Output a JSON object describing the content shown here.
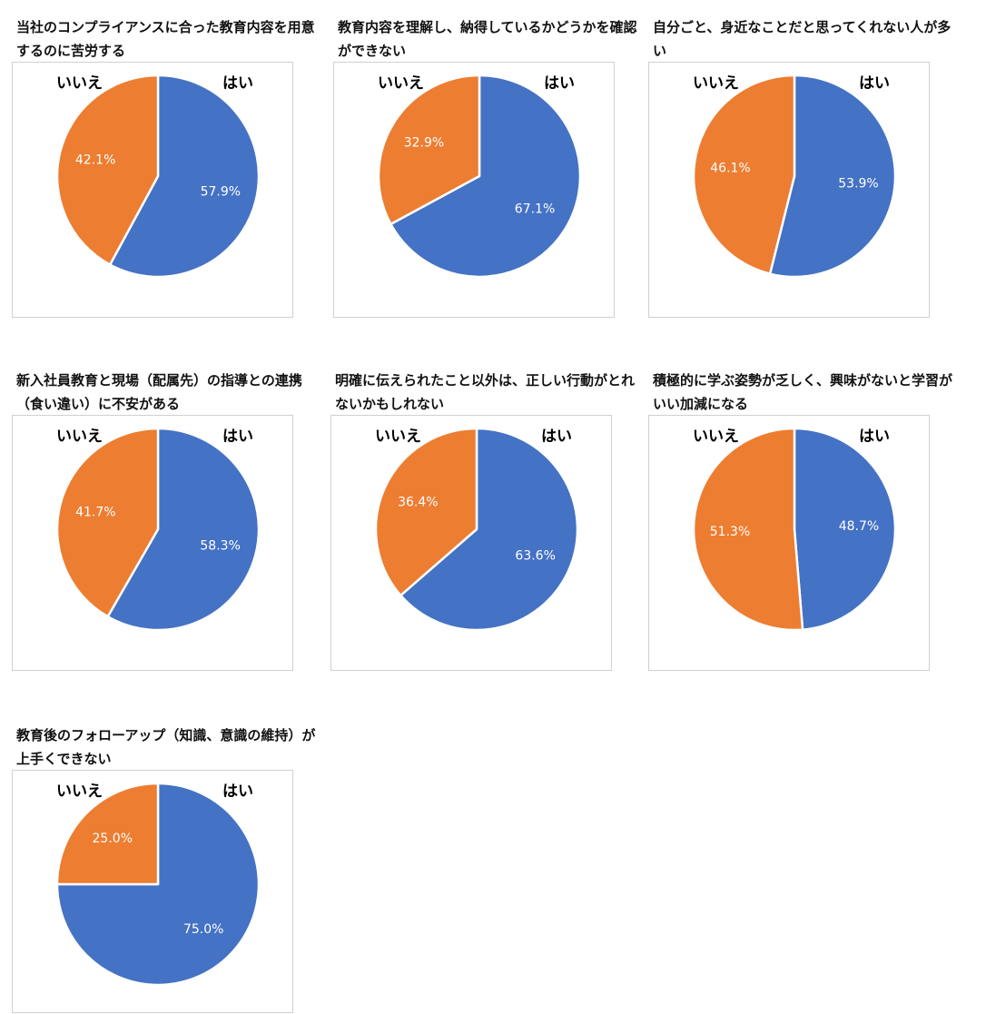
{
  "colors": {
    "yes": "#4472c4",
    "no": "#ed7d31",
    "frame": "#d0d0d0",
    "slice_text": "#ffffff"
  },
  "chart_data": [
    {
      "type": "pie",
      "title": "当社のコンプライアンスに合った教育内容を用意するのに苦労する",
      "categories": [
        "はい",
        "いいえ"
      ],
      "values": [
        57.9,
        42.1
      ],
      "labels": [
        "57.9%",
        "42.1%"
      ]
    },
    {
      "type": "pie",
      "title": "教育内容を理解し、納得しているかどうかを確認ができない",
      "categories": [
        "はい",
        "いいえ"
      ],
      "values": [
        67.1,
        32.9
      ],
      "labels": [
        "67.1%",
        "32.9%"
      ]
    },
    {
      "type": "pie",
      "title": "自分ごと、身近なことだと思ってくれない人が多い",
      "categories": [
        "はい",
        "いいえ"
      ],
      "values": [
        53.9,
        46.1
      ],
      "labels": [
        "53.9%",
        "46.1%"
      ]
    },
    {
      "type": "pie",
      "title": "新入社員教育と現場（配属先）の指導との連携（食い違い）に不安がある",
      "categories": [
        "はい",
        "いいえ"
      ],
      "values": [
        58.3,
        41.7
      ],
      "labels": [
        "58.3%",
        "41.7%"
      ]
    },
    {
      "type": "pie",
      "title": "明確に伝えられたこと以外は、正しい行動がとれないかもしれない",
      "categories": [
        "はい",
        "いいえ"
      ],
      "values": [
        63.6,
        36.4
      ],
      "labels": [
        "63.6%",
        "36.4%"
      ]
    },
    {
      "type": "pie",
      "title": "積極的に学ぶ姿勢が乏しく、興味がないと学習がいい加減になる",
      "categories": [
        "はい",
        "いいえ"
      ],
      "values": [
        48.7,
        51.3
      ],
      "labels": [
        "48.7%",
        "51.3%"
      ]
    },
    {
      "type": "pie",
      "title": "教育後のフォローアップ（知識、意識の維持）が上手くできない",
      "categories": [
        "はい",
        "いいえ"
      ],
      "values": [
        75.0,
        25.0
      ],
      "labels": [
        "75.0%",
        "25.0%"
      ]
    }
  ]
}
